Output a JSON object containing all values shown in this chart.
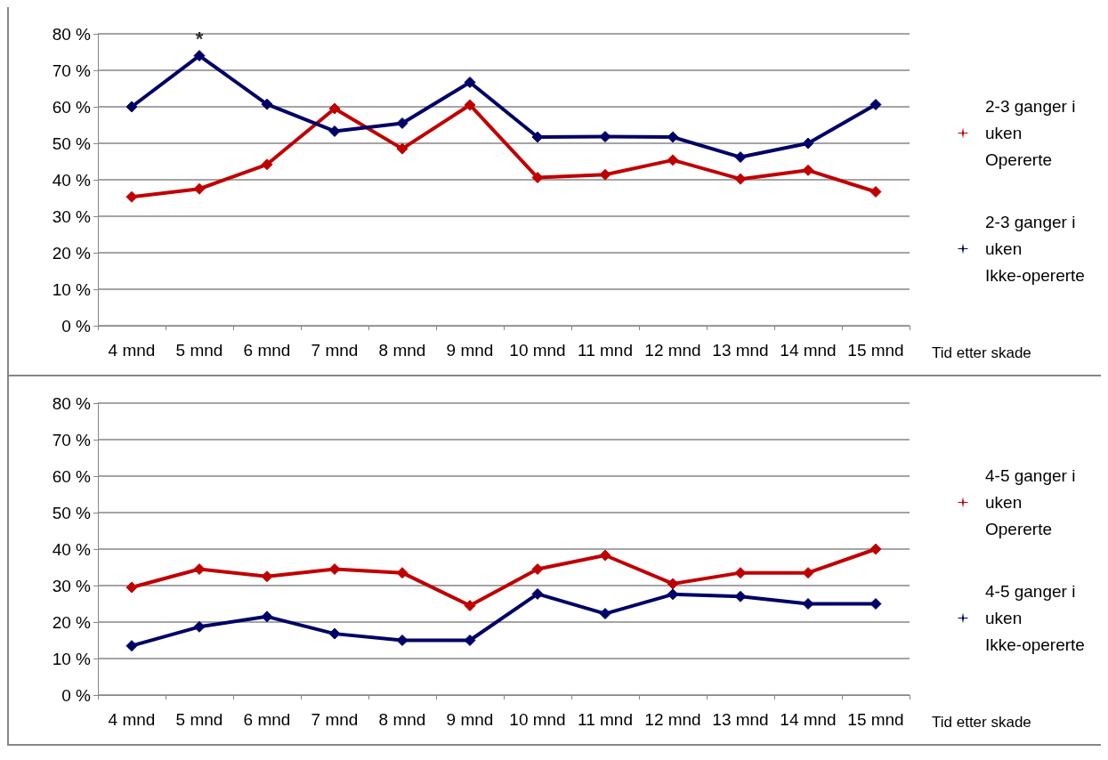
{
  "chart_data": [
    {
      "type": "line",
      "categories": [
        "4 mnd",
        "5 mnd",
        "6 mnd",
        "7 mnd",
        "8 mnd",
        "9 mnd",
        "10 mnd",
        "11 mnd",
        "12 mnd",
        "13 mnd",
        "14 mnd",
        "15 mnd"
      ],
      "xlabel": "Tid etter skade",
      "series": [
        {
          "name": "2-3 ganger i uken Opererte",
          "color": "#c00000",
          "values": [
            35.3,
            37.5,
            44.2,
            59.5,
            48.5,
            60.5,
            40.6,
            41.4,
            45.4,
            40.2,
            42.6,
            36.7
          ]
        },
        {
          "name": "2-3 ganger i uken Ikke-opererte",
          "color": "#000066",
          "values": [
            60,
            74,
            60.7,
            53.3,
            55.5,
            66.7,
            51.7,
            51.8,
            51.7,
            46.2,
            50,
            60.6
          ]
        }
      ],
      "annotations": [
        {
          "text": "*",
          "x": "5 mnd",
          "y": 74
        }
      ],
      "ylim": [
        0,
        80
      ],
      "yticks": [
        {
          "value": 0,
          "label": "0 %"
        },
        {
          "value": 10,
          "label": "10 %"
        },
        {
          "value": 20,
          "label": "20 %"
        },
        {
          "value": 30,
          "label": "30 %"
        },
        {
          "value": 40,
          "label": "40 %"
        },
        {
          "value": 50,
          "label": "50 %"
        },
        {
          "value": 60,
          "label": "60 %"
        },
        {
          "value": 70,
          "label": "70 %"
        },
        {
          "value": 80,
          "label": "80 %"
        }
      ],
      "grid": "y",
      "legend": "right",
      "marker": "diamond",
      "line_style": "solid"
    },
    {
      "type": "line",
      "categories": [
        "4 mnd",
        "5 mnd",
        "6 mnd",
        "7 mnd",
        "8 mnd",
        "9 mnd",
        "10 mnd",
        "11 mnd",
        "12 mnd",
        "13 mnd",
        "14 mnd",
        "15 mnd"
      ],
      "xlabel": "Tid etter skade",
      "series": [
        {
          "name": "4-5 ganger i uken Opererte",
          "color": "#c00000",
          "values": [
            29.5,
            34.5,
            32.5,
            34.5,
            33.5,
            24.5,
            34.5,
            38.3,
            30.5,
            33.5,
            33.5,
            40
          ]
        },
        {
          "name": "4-5 ganger i uken Ikke-opererte",
          "color": "#000066",
          "values": [
            13.5,
            18.7,
            21.5,
            16.8,
            15,
            15,
            27.7,
            22.3,
            27.6,
            27,
            25,
            25
          ]
        }
      ],
      "ylim": [
        0,
        80
      ],
      "yticks": [
        {
          "value": 0,
          "label": "0 %"
        },
        {
          "value": 10,
          "label": "10 %"
        },
        {
          "value": 20,
          "label": "20 %"
        },
        {
          "value": 30,
          "label": "30 %"
        },
        {
          "value": 40,
          "label": "40 %"
        },
        {
          "value": 50,
          "label": "50 %"
        },
        {
          "value": 60,
          "label": "60 %"
        },
        {
          "value": 70,
          "label": "70 %"
        },
        {
          "value": 80,
          "label": "80 %"
        }
      ],
      "grid": "y",
      "legend": "right",
      "marker": "diamond",
      "line_style": "solid"
    }
  ]
}
